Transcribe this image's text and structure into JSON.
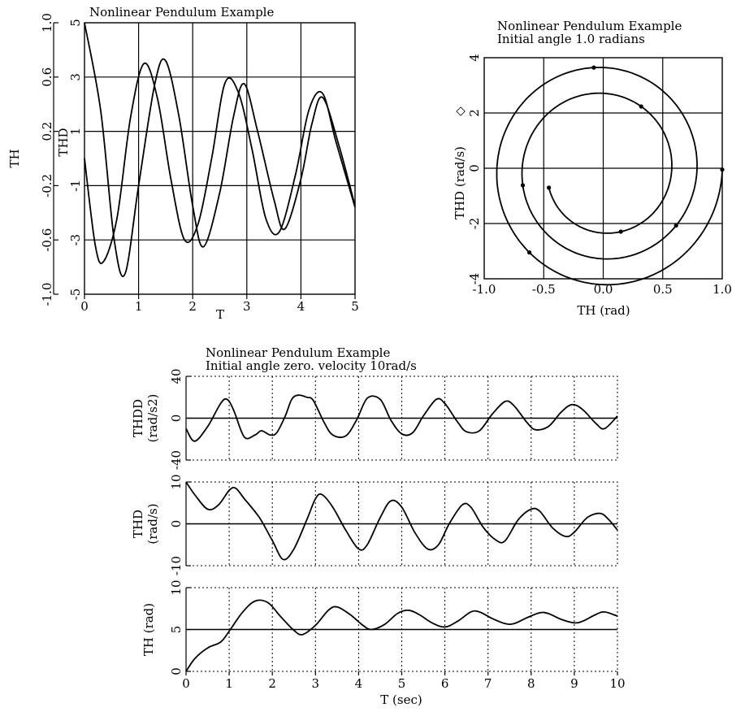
{
  "chart_data": [
    {
      "type": "line",
      "title": "Nonlinear Pendulum Example",
      "xlabel": "T",
      "y_axes": [
        {
          "label": "TH",
          "range": [
            -1.0,
            1.0
          ],
          "ticks": [
            "1.0",
            "0.6",
            "0.2",
            "-0.2",
            "-0.6",
            "-1.0"
          ]
        },
        {
          "label": "THD",
          "range": [
            -5,
            5
          ],
          "ticks": [
            "5",
            "3",
            "1",
            "-1",
            "-3",
            "-5"
          ]
        }
      ],
      "x_range": [
        0,
        5
      ],
      "x_ticks": [
        "0",
        "1",
        "2",
        "3",
        "4",
        "5"
      ],
      "grid": true,
      "series": [
        {
          "axis": "TH",
          "points": [
            [
              0,
              1.0
            ],
            [
              0.3,
              0.35
            ],
            [
              0.55,
              -0.6
            ],
            [
              0.75,
              -0.85
            ],
            [
              1.0,
              -0.2
            ],
            [
              1.3,
              0.55
            ],
            [
              1.5,
              0.72
            ],
            [
              1.75,
              0.3
            ],
            [
              2.0,
              -0.35
            ],
            [
              2.2,
              -0.65
            ],
            [
              2.5,
              -0.25
            ],
            [
              2.75,
              0.3
            ],
            [
              2.95,
              0.55
            ],
            [
              3.2,
              0.2
            ],
            [
              3.5,
              -0.3
            ],
            [
              3.7,
              -0.52
            ],
            [
              4.0,
              -0.15
            ],
            [
              4.2,
              0.25
            ],
            [
              4.4,
              0.45
            ],
            [
              4.7,
              0.1
            ],
            [
              5.0,
              -0.35
            ]
          ]
        },
        {
          "axis": "THD",
          "points": [
            [
              0,
              0
            ],
            [
              0.2,
              -3.2
            ],
            [
              0.35,
              -3.8
            ],
            [
              0.6,
              -2.2
            ],
            [
              0.85,
              1.5
            ],
            [
              1.1,
              3.5
            ],
            [
              1.35,
              2.2
            ],
            [
              1.6,
              -0.8
            ],
            [
              1.85,
              -3.0
            ],
            [
              2.1,
              -2.4
            ],
            [
              2.35,
              0.0
            ],
            [
              2.6,
              2.8
            ],
            [
              2.85,
              2.4
            ],
            [
              3.1,
              0.3
            ],
            [
              3.35,
              -2.2
            ],
            [
              3.6,
              -2.7
            ],
            [
              3.9,
              -0.6
            ],
            [
              4.15,
              1.8
            ],
            [
              4.4,
              2.4
            ],
            [
              4.65,
              0.6
            ],
            [
              5.0,
              -1.8
            ]
          ]
        }
      ]
    },
    {
      "type": "line",
      "title": "Nonlinear Pendulum Example",
      "subtitle": "Initial angle 1.0 radians",
      "xlabel": "TH (rad)",
      "ylabel": "THD (rad/s)",
      "legend_symbol": "◇",
      "xlim": [
        -1.0,
        1.0
      ],
      "ylim": [
        -4,
        4
      ],
      "x_ticks": [
        "-1.0",
        "-0.5",
        "0.0",
        "0.5",
        "1.0"
      ],
      "y_ticks": [
        "4",
        "2",
        "0",
        "-2",
        "-4"
      ],
      "grid": true,
      "series": [
        {
          "name": "",
          "shape": "phase-spiral",
          "start": [
            1.0,
            0.0
          ],
          "turns": 2
        }
      ]
    },
    {
      "type": "line",
      "title": "Nonlinear Pendulum Example",
      "subtitle": "Initial angle zero. velocity 10rad/s",
      "xlabel": "T (sec)",
      "x_range": [
        0,
        10
      ],
      "x_ticks": [
        "0",
        "1",
        "2",
        "3",
        "4",
        "5",
        "6",
        "7",
        "8",
        "9",
        "10"
      ],
      "grid": "dotted",
      "panels": [
        {
          "ylabel": "THDD",
          "ylabel2": "(rad/s2)",
          "ylim": [
            -40,
            40
          ],
          "y_ticks": [
            "40",
            "0",
            "-40"
          ],
          "ref": 0,
          "points": [
            [
              0,
              -10
            ],
            [
              0.2,
              -22
            ],
            [
              0.5,
              -8
            ],
            [
              0.8,
              14
            ],
            [
              0.95,
              18
            ],
            [
              1.1,
              8
            ],
            [
              1.35,
              -18
            ],
            [
              1.6,
              -16
            ],
            [
              1.75,
              -12
            ],
            [
              1.95,
              -16
            ],
            [
              2.1,
              -14
            ],
            [
              2.3,
              2
            ],
            [
              2.45,
              18
            ],
            [
              2.6,
              22
            ],
            [
              2.8,
              20
            ],
            [
              2.95,
              17
            ],
            [
              3.2,
              -4
            ],
            [
              3.4,
              -16
            ],
            [
              3.7,
              -17
            ],
            [
              3.95,
              -2
            ],
            [
              4.2,
              19
            ],
            [
              4.5,
              18
            ],
            [
              4.75,
              -2
            ],
            [
              5.0,
              -15
            ],
            [
              5.25,
              -14
            ],
            [
              5.5,
              2
            ],
            [
              5.8,
              18
            ],
            [
              6.0,
              14
            ],
            [
              6.3,
              -4
            ],
            [
              6.5,
              -13
            ],
            [
              6.8,
              -12
            ],
            [
              7.1,
              4
            ],
            [
              7.4,
              16
            ],
            [
              7.6,
              12
            ],
            [
              7.9,
              -4
            ],
            [
              8.1,
              -11
            ],
            [
              8.4,
              -8
            ],
            [
              8.7,
              6
            ],
            [
              8.95,
              13
            ],
            [
              9.2,
              8
            ],
            [
              9.5,
              -5
            ],
            [
              9.7,
              -10
            ],
            [
              10.0,
              2
            ]
          ]
        },
        {
          "ylabel": "THD",
          "ylabel2": "(rad/s)",
          "ylim": [
            -10,
            10
          ],
          "y_ticks": [
            "10",
            "0",
            "-10"
          ],
          "ref": 0,
          "points": [
            [
              0,
              10
            ],
            [
              0.2,
              7
            ],
            [
              0.5,
              3.5
            ],
            [
              0.75,
              4.5
            ],
            [
              1.0,
              8
            ],
            [
              1.15,
              8.5
            ],
            [
              1.35,
              6
            ],
            [
              1.7,
              1.5
            ],
            [
              2.0,
              -4
            ],
            [
              2.25,
              -8.5
            ],
            [
              2.5,
              -6
            ],
            [
              2.8,
              1
            ],
            [
              3.0,
              6
            ],
            [
              3.15,
              7
            ],
            [
              3.4,
              4
            ],
            [
              3.7,
              -1.5
            ],
            [
              4.0,
              -6
            ],
            [
              4.2,
              -5
            ],
            [
              4.5,
              1.5
            ],
            [
              4.75,
              5.5
            ],
            [
              5.0,
              4
            ],
            [
              5.3,
              -2
            ],
            [
              5.6,
              -6
            ],
            [
              5.85,
              -5
            ],
            [
              6.1,
              0
            ],
            [
              6.4,
              4.5
            ],
            [
              6.6,
              4
            ],
            [
              6.9,
              -1
            ],
            [
              7.2,
              -4
            ],
            [
              7.4,
              -4
            ],
            [
              7.7,
              1
            ],
            [
              8.0,
              3.5
            ],
            [
              8.2,
              3
            ],
            [
              8.5,
              -1
            ],
            [
              8.8,
              -3
            ],
            [
              9.0,
              -2
            ],
            [
              9.3,
              1.5
            ],
            [
              9.6,
              2.5
            ],
            [
              9.8,
              1
            ],
            [
              10.0,
              -1.5
            ]
          ]
        },
        {
          "ylabel": "TH (rad)",
          "ylabel2": "",
          "ylim": [
            0,
            10
          ],
          "y_ticks": [
            "10",
            "5",
            "0"
          ],
          "ref": 5,
          "points": [
            [
              0,
              0
            ],
            [
              0.2,
              1.5
            ],
            [
              0.5,
              2.8
            ],
            [
              0.8,
              3.5
            ],
            [
              1.0,
              4.8
            ],
            [
              1.3,
              7
            ],
            [
              1.6,
              8.4
            ],
            [
              1.9,
              8.2
            ],
            [
              2.2,
              6.5
            ],
            [
              2.5,
              4.9
            ],
            [
              2.7,
              4.4
            ],
            [
              3.0,
              5.5
            ],
            [
              3.3,
              7.3
            ],
            [
              3.5,
              7.7
            ],
            [
              3.8,
              6.8
            ],
            [
              4.1,
              5.5
            ],
            [
              4.3,
              5.0
            ],
            [
              4.6,
              5.6
            ],
            [
              4.9,
              6.9
            ],
            [
              5.15,
              7.3
            ],
            [
              5.4,
              6.8
            ],
            [
              5.7,
              5.8
            ],
            [
              6.0,
              5.3
            ],
            [
              6.3,
              6.0
            ],
            [
              6.6,
              7.1
            ],
            [
              6.8,
              7.1
            ],
            [
              7.1,
              6.3
            ],
            [
              7.4,
              5.7
            ],
            [
              7.6,
              5.7
            ],
            [
              7.9,
              6.4
            ],
            [
              8.2,
              7.0
            ],
            [
              8.4,
              6.9
            ],
            [
              8.7,
              6.2
            ],
            [
              9.0,
              5.8
            ],
            [
              9.2,
              6.0
            ],
            [
              9.5,
              6.8
            ],
            [
              9.7,
              7.1
            ],
            [
              10.0,
              6.6
            ]
          ]
        }
      ]
    }
  ]
}
